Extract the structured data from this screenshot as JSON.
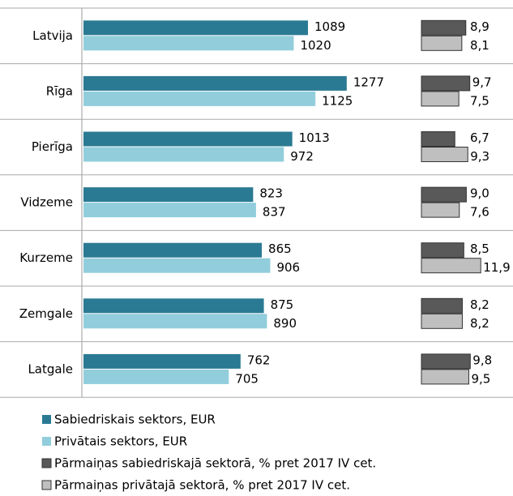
{
  "chart_data": {
    "type": "bar",
    "orientation": "horizontal",
    "categories": [
      "Latvija",
      "Rīga",
      "Pierīga",
      "Vidzeme",
      "Kurzeme",
      "Zemgale",
      "Latgale"
    ],
    "xlim": [
      0,
      1600
    ],
    "x2lim": [
      0,
      13
    ],
    "series": [
      {
        "name": "Sabiedriskais sektors, EUR",
        "color": "#2b7a93",
        "values": [
          1089,
          1277,
          1013,
          823,
          865,
          875,
          762
        ]
      },
      {
        "name": "Privātais sektors, EUR",
        "color": "#92cddc",
        "values": [
          1020,
          1125,
          972,
          837,
          906,
          890,
          705
        ]
      },
      {
        "name": "Pārmaiņas sabiedriskajā sektorā, % pret 2017 IV cet.",
        "color": "#595959",
        "axis": "x2",
        "values": [
          8.9,
          9.7,
          6.7,
          9.0,
          8.5,
          8.2,
          9.8
        ],
        "value_labels": [
          "8,9",
          "9,7",
          "6,7",
          "9,0",
          "8,5",
          "8,2",
          "9,8"
        ]
      },
      {
        "name": "Pārmaiņas privātajā sektorā, % pret 2017 IV cet.",
        "color": "#bfbfbf",
        "axis": "x2",
        "values": [
          8.1,
          7.5,
          9.3,
          7.6,
          11.9,
          8.2,
          9.5
        ],
        "value_labels": [
          "8,1",
          "7,5",
          "9,3",
          "7,6",
          "11,9",
          "8,2",
          "9,5"
        ]
      }
    ]
  }
}
